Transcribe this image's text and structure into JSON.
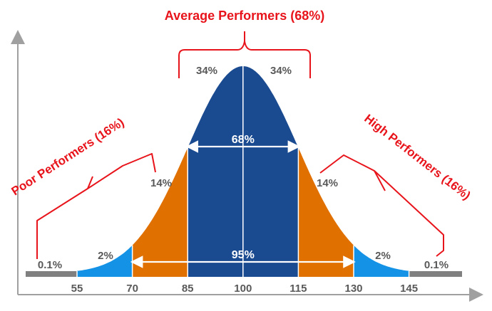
{
  "chart_data": {
    "type": "area",
    "title": "",
    "xlabel": "",
    "ylabel": "",
    "distribution": {
      "mean": 100,
      "sd": 15
    },
    "x_ticks": [
      55,
      70,
      85,
      100,
      115,
      130,
      145
    ],
    "xlim": [
      45,
      160
    ],
    "bands": [
      {
        "from": 45,
        "to": 55,
        "label": "0.1%",
        "color": "#808080"
      },
      {
        "from": 55,
        "to": 70,
        "label": "2%",
        "color": "#1492e6"
      },
      {
        "from": 70,
        "to": 85,
        "label": "14%",
        "color": "#e07000"
      },
      {
        "from": 85,
        "to": 100,
        "label": "34%",
        "color": "#1a4a8f"
      },
      {
        "from": 100,
        "to": 115,
        "label": "34%",
        "color": "#1a4a8f"
      },
      {
        "from": 115,
        "to": 130,
        "label": "14%",
        "color": "#e07000"
      },
      {
        "from": 130,
        "to": 145,
        "label": "2%",
        "color": "#1492e6"
      },
      {
        "from": 145,
        "to": 155,
        "label": "0.1%",
        "color": "#808080"
      }
    ],
    "ranges": [
      {
        "from": 85,
        "to": 115,
        "label": "68%"
      },
      {
        "from": 70,
        "to": 130,
        "label": "95%"
      }
    ],
    "annotations": {
      "average": "Average Performers (68%)",
      "poor": "Poor Performers (16%)",
      "high": "High Performers (16%)"
    },
    "colors": {
      "accent": "#e8141b",
      "axis": "#a0a0a0",
      "text": "#595959"
    }
  }
}
